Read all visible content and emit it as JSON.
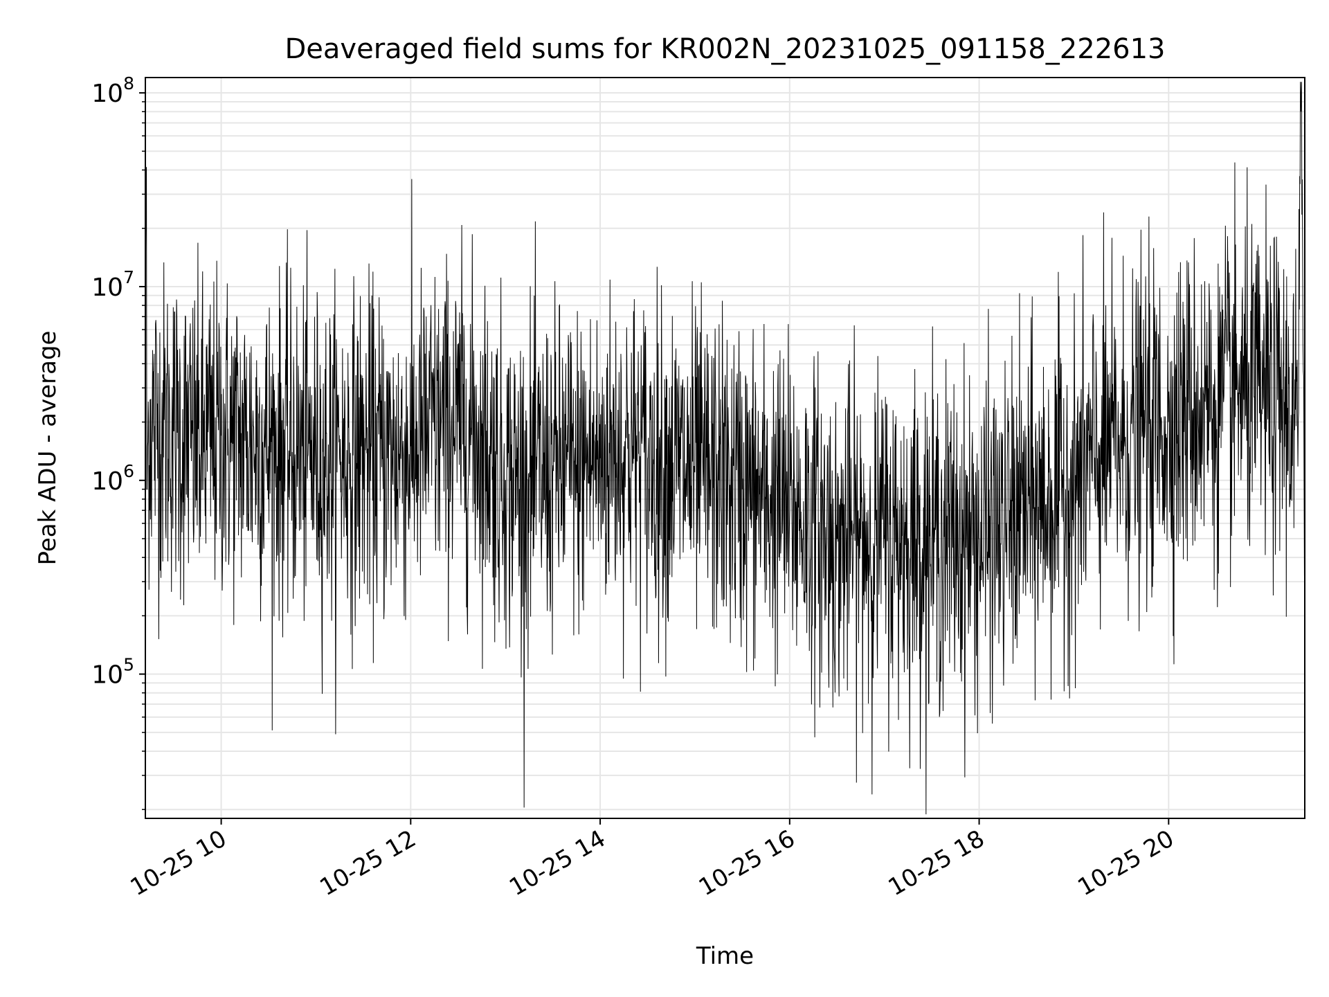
{
  "chart_data": {
    "type": "line",
    "title": "Deaveraged field sums for KR002N_20231025_091158_222613",
    "xlabel": "Time",
    "ylabel": "Peak ADU - average",
    "yscale": "log",
    "ylim": [
      18000,
      120000000
    ],
    "xlim": [
      "2023-10-25T09:11:58",
      "2023-10-25T21:26:13"
    ],
    "grid": true,
    "grid_color": "#e6e6e6",
    "line_color": "#000000",
    "x_ticks": [
      {
        "value": "2023-10-25T10:00:00",
        "label": "10-25 10"
      },
      {
        "value": "2023-10-25T12:00:00",
        "label": "10-25 12"
      },
      {
        "value": "2023-10-25T14:00:00",
        "label": "10-25 14"
      },
      {
        "value": "2023-10-25T16:00:00",
        "label": "10-25 16"
      },
      {
        "value": "2023-10-25T18:00:00",
        "label": "10-25 18"
      },
      {
        "value": "2023-10-25T20:00:00",
        "label": "10-25 20"
      }
    ],
    "y_ticks": [
      {
        "value": 100000,
        "base": "10",
        "exp": "5"
      },
      {
        "value": 1000000,
        "base": "10",
        "exp": "6"
      },
      {
        "value": 10000000,
        "base": "10",
        "exp": "7"
      },
      {
        "value": 100000000,
        "base": "10",
        "exp": "8"
      }
    ],
    "series": [
      {
        "x": [
          "2023-10-25T09:11:58",
          "2023-10-25T09:12:30",
          "2023-10-25T09:13:00",
          "2023-10-25T09:14:00",
          "2023-10-25T09:30:00",
          "2023-10-25T09:45:00",
          "2023-10-25T10:00:00",
          "2023-10-25T10:15:00",
          "2023-10-25T10:30:00",
          "2023-10-25T10:45:00",
          "2023-10-25T11:00:00",
          "2023-10-25T11:15:00",
          "2023-10-25T11:30:00",
          "2023-10-25T11:45:00",
          "2023-10-25T12:00:00",
          "2023-10-25T12:15:00",
          "2023-10-25T12:30:00",
          "2023-10-25T12:45:00",
          "2023-10-25T13:00:00",
          "2023-10-25T13:15:00",
          "2023-10-25T13:30:00",
          "2023-10-25T13:45:00",
          "2023-10-25T14:00:00",
          "2023-10-25T14:15:00",
          "2023-10-25T14:30:00",
          "2023-10-25T14:45:00",
          "2023-10-25T15:00:00",
          "2023-10-25T15:15:00",
          "2023-10-25T15:30:00",
          "2023-10-25T15:45:00",
          "2023-10-25T16:00:00",
          "2023-10-25T16:15:00",
          "2023-10-25T16:30:00",
          "2023-10-25T16:45:00",
          "2023-10-25T17:00:00",
          "2023-10-25T17:15:00",
          "2023-10-25T17:30:00",
          "2023-10-25T17:45:00",
          "2023-10-25T18:00:00",
          "2023-10-25T18:15:00",
          "2023-10-25T18:30:00",
          "2023-10-25T18:45:00",
          "2023-10-25T19:00:00",
          "2023-10-25T19:15:00",
          "2023-10-25T19:30:00",
          "2023-10-25T19:45:00",
          "2023-10-25T20:00:00",
          "2023-10-25T20:15:00",
          "2023-10-25T20:30:00",
          "2023-10-25T20:45:00",
          "2023-10-25T21:00:00",
          "2023-10-25T21:15:00",
          "2023-10-25T21:22:00",
          "2023-10-25T21:24:00",
          "2023-10-25T21:26:13"
        ],
        "y": [
          1800000,
          33000000,
          900000,
          2000000,
          1800000,
          1500000,
          1700000,
          1600000,
          1500000,
          1400000,
          1300000,
          1300000,
          1400000,
          1300000,
          1500000,
          1800000,
          2000000,
          1700000,
          1000000,
          1000000,
          1100000,
          1200000,
          1300000,
          1500000,
          1300000,
          1200000,
          1100000,
          1000000,
          900000,
          800000,
          700000,
          600000,
          500000,
          500000,
          500000,
          500000,
          500000,
          500000,
          500000,
          600000,
          700000,
          800000,
          1000000,
          1300000,
          1600000,
          1800000,
          2000000,
          2300000,
          2600000,
          2800000,
          2700000,
          2400000,
          2000000,
          80000000,
          1000000
        ],
        "noise_log10_sd": 0.42
      }
    ]
  }
}
